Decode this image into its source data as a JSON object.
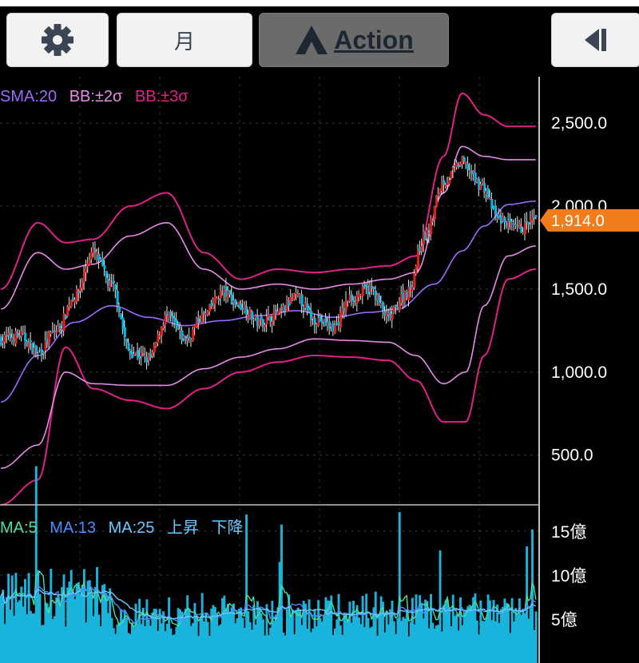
{
  "toolbar": {
    "settings_icon": "gear-icon",
    "period_label": "月",
    "action_label": "Action",
    "action_icon": "action-logo-icon",
    "collapse_icon": "collapse-left-icon"
  },
  "colors": {
    "up": "#e02020",
    "down": "#00b8e6",
    "sma": "#9b6bff",
    "bb2": "#e88ae8",
    "bb3": "#e0208a",
    "price_tag": "#f07c1a",
    "vol_ma5": "#49e0a0",
    "vol_ma13": "#4a8cff",
    "vol_ma25": "#6ac8ff"
  },
  "price_panel": {
    "legend": [
      {
        "text": "SMA:20",
        "color": "#9b6bff"
      },
      {
        "text": "BB:±2σ",
        "color": "#e88ae8"
      },
      {
        "text": "BB:±3σ",
        "color": "#e0208a"
      }
    ],
    "last_price_label": "1,914.0"
  },
  "volume_panel": {
    "legend": [
      {
        "text": "MA:5",
        "color": "#49e0a0"
      },
      {
        "text": "MA:13",
        "color": "#4a8cff"
      },
      {
        "text": "MA:25",
        "color": "#6ac8ff"
      },
      {
        "text": "上昇",
        "color": "#6ac8ff"
      },
      {
        "text": "下降",
        "color": "#6ac8ff"
      }
    ]
  },
  "chart_data": {
    "type": "candlestick",
    "price_axis": {
      "min": 200,
      "max": 2780,
      "ticks": [
        500,
        1000,
        1500,
        2000,
        2500
      ],
      "tick_labels": [
        "500.0",
        "1,000.0",
        "1,500.0",
        "2,000.0",
        "2,500.0"
      ],
      "last_price": 1914
    },
    "volume_axis": {
      "min": 0,
      "max": 1800000000,
      "ticks": [
        500000000,
        1000000000,
        1500000000
      ],
      "tick_labels": [
        "5億",
        "10億",
        "15億"
      ]
    },
    "price_anchors": [
      [
        0,
        1200
      ],
      [
        10,
        1220
      ],
      [
        20,
        1120
      ],
      [
        30,
        1250
      ],
      [
        40,
        1460
      ],
      [
        50,
        1720
      ],
      [
        60,
        1520
      ],
      [
        70,
        1120
      ],
      [
        80,
        1080
      ],
      [
        90,
        1330
      ],
      [
        100,
        1200
      ],
      [
        110,
        1340
      ],
      [
        120,
        1480
      ],
      [
        130,
        1400
      ],
      [
        140,
        1300
      ],
      [
        150,
        1350
      ],
      [
        160,
        1450
      ],
      [
        170,
        1320
      ],
      [
        180,
        1270
      ],
      [
        190,
        1450
      ],
      [
        200,
        1500
      ],
      [
        210,
        1330
      ],
      [
        220,
        1480
      ],
      [
        230,
        1820
      ],
      [
        240,
        2150
      ],
      [
        250,
        2260
      ],
      [
        260,
        2130
      ],
      [
        270,
        1920
      ],
      [
        280,
        1860
      ],
      [
        290,
        1914
      ]
    ],
    "bb_upper3_anchors": [
      [
        0,
        1500
      ],
      [
        20,
        1900
      ],
      [
        35,
        1780
      ],
      [
        50,
        1800
      ],
      [
        70,
        2000
      ],
      [
        90,
        2080
      ],
      [
        110,
        1720
      ],
      [
        130,
        1560
      ],
      [
        150,
        1620
      ],
      [
        170,
        1600
      ],
      [
        190,
        1620
      ],
      [
        210,
        1640
      ],
      [
        225,
        1700
      ],
      [
        240,
        2300
      ],
      [
        250,
        2680
      ],
      [
        262,
        2550
      ],
      [
        275,
        2480
      ],
      [
        290,
        2480
      ]
    ],
    "bb_upper2_anchors": [
      [
        0,
        1380
      ],
      [
        20,
        1720
      ],
      [
        35,
        1620
      ],
      [
        50,
        1650
      ],
      [
        70,
        1820
      ],
      [
        90,
        1900
      ],
      [
        110,
        1620
      ],
      [
        130,
        1500
      ],
      [
        150,
        1530
      ],
      [
        170,
        1500
      ],
      [
        190,
        1530
      ],
      [
        210,
        1560
      ],
      [
        225,
        1600
      ],
      [
        240,
        2080
      ],
      [
        250,
        2360
      ],
      [
        262,
        2300
      ],
      [
        275,
        2280
      ],
      [
        290,
        2280
      ]
    ],
    "sma20_anchors": [
      [
        0,
        820
      ],
      [
        20,
        1100
      ],
      [
        40,
        1300
      ],
      [
        60,
        1400
      ],
      [
        80,
        1330
      ],
      [
        100,
        1280
      ],
      [
        120,
        1310
      ],
      [
        140,
        1340
      ],
      [
        160,
        1370
      ],
      [
        180,
        1330
      ],
      [
        200,
        1360
      ],
      [
        215,
        1380
      ],
      [
        235,
        1530
      ],
      [
        250,
        1730
      ],
      [
        262,
        1880
      ],
      [
        275,
        2010
      ],
      [
        290,
        2030
      ]
    ],
    "bb_lower2_anchors": [
      [
        0,
        420
      ],
      [
        20,
        560
      ],
      [
        35,
        1000
      ],
      [
        50,
        930
      ],
      [
        70,
        920
      ],
      [
        90,
        920
      ],
      [
        110,
        1020
      ],
      [
        130,
        1090
      ],
      [
        150,
        1140
      ],
      [
        170,
        1200
      ],
      [
        190,
        1190
      ],
      [
        210,
        1180
      ],
      [
        225,
        1100
      ],
      [
        240,
        930
      ],
      [
        252,
        1000
      ],
      [
        262,
        1400
      ],
      [
        275,
        1700
      ],
      [
        290,
        1760
      ]
    ],
    "bb_lower3_anchors": [
      [
        0,
        200
      ],
      [
        20,
        350
      ],
      [
        35,
        1150
      ],
      [
        50,
        900
      ],
      [
        70,
        830
      ],
      [
        90,
        780
      ],
      [
        110,
        900
      ],
      [
        130,
        1000
      ],
      [
        150,
        1060
      ],
      [
        170,
        1100
      ],
      [
        190,
        1090
      ],
      [
        210,
        1070
      ],
      [
        225,
        950
      ],
      [
        240,
        700
      ],
      [
        252,
        700
      ],
      [
        262,
        1100
      ],
      [
        275,
        1560
      ],
      [
        290,
        1620
      ]
    ],
    "candle_count": 291,
    "volume_base": 550000000
  }
}
